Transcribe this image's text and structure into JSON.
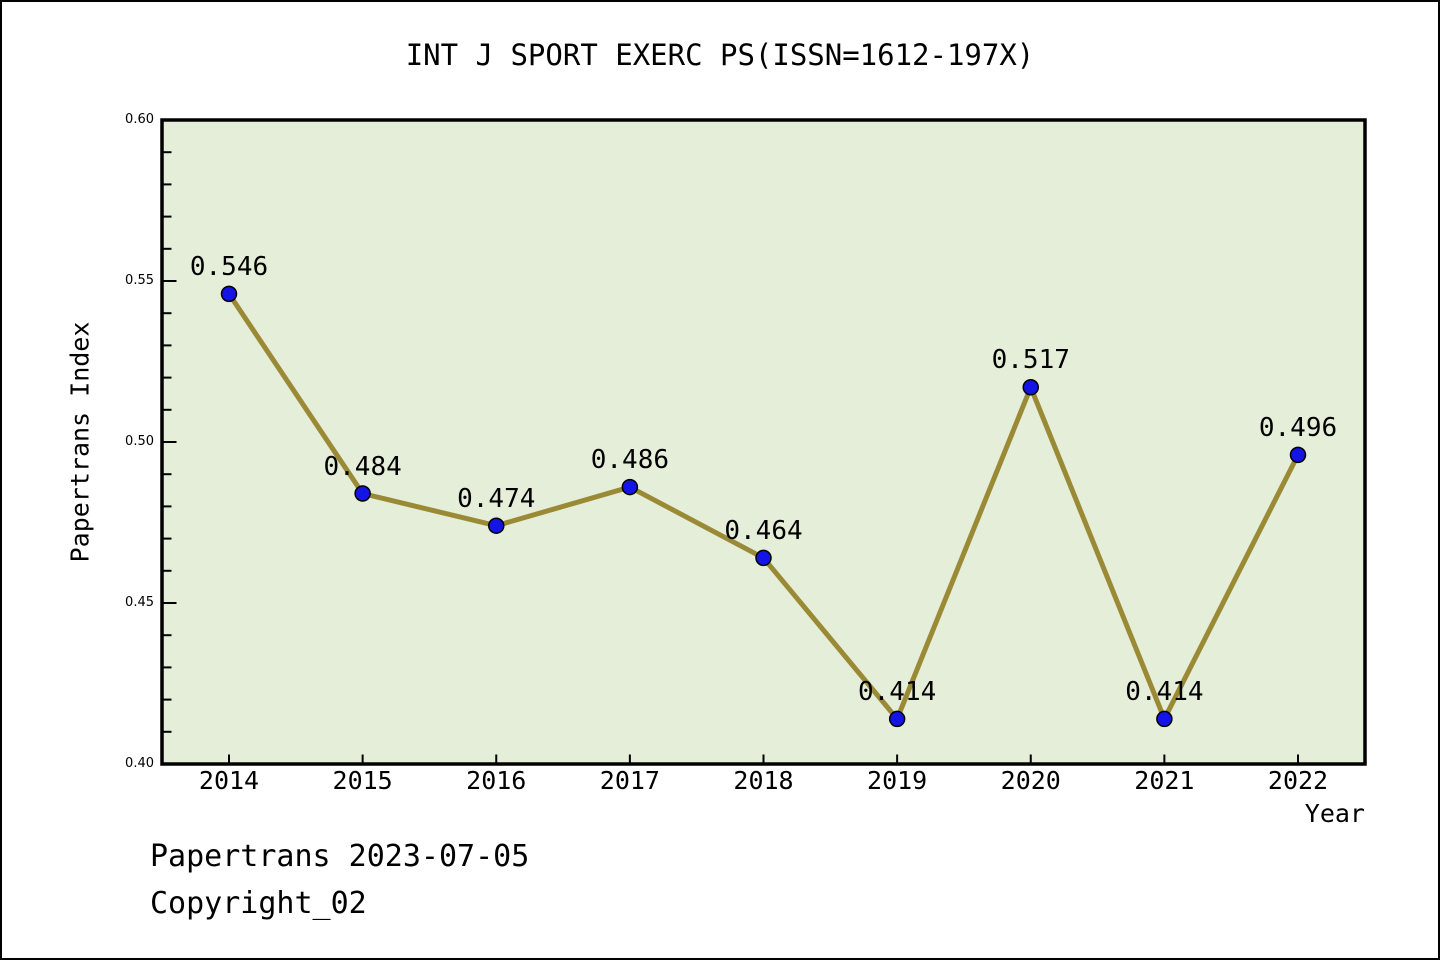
{
  "title": "INT J SPORT EXERC PS(ISSN=1612-197X)",
  "footer": {
    "line1": "Papertrans 2023-07-05",
    "line2": "Copyright_02"
  },
  "chart_data": {
    "type": "line",
    "title": "INT J SPORT EXERC PS(ISSN=1612-197X)",
    "x": [
      2014,
      2015,
      2016,
      2017,
      2018,
      2019,
      2020,
      2021,
      2022
    ],
    "values": [
      0.546,
      0.484,
      0.474,
      0.486,
      0.464,
      0.414,
      0.517,
      0.414,
      0.496
    ],
    "point_labels": [
      "0.546",
      "0.484",
      "0.474",
      "0.486",
      "0.464",
      "0.414",
      "0.517",
      "0.414",
      "0.496"
    ],
    "xlabel": "Year",
    "ylabel": "Papertrans Index",
    "ylim": [
      0.4,
      0.6
    ],
    "y_major_ticks": [
      "0.40",
      "0.45",
      "0.50",
      "0.55",
      "0.60"
    ],
    "y_minor_step": 0.01,
    "grid": false,
    "legend": "none",
    "colors": {
      "line": "#9a8a36",
      "marker_fill": "#1414e6",
      "marker_edge": "#000000",
      "plot_background": "#e5eed8",
      "figure_background": "#ffffff",
      "text": "#000000"
    }
  }
}
